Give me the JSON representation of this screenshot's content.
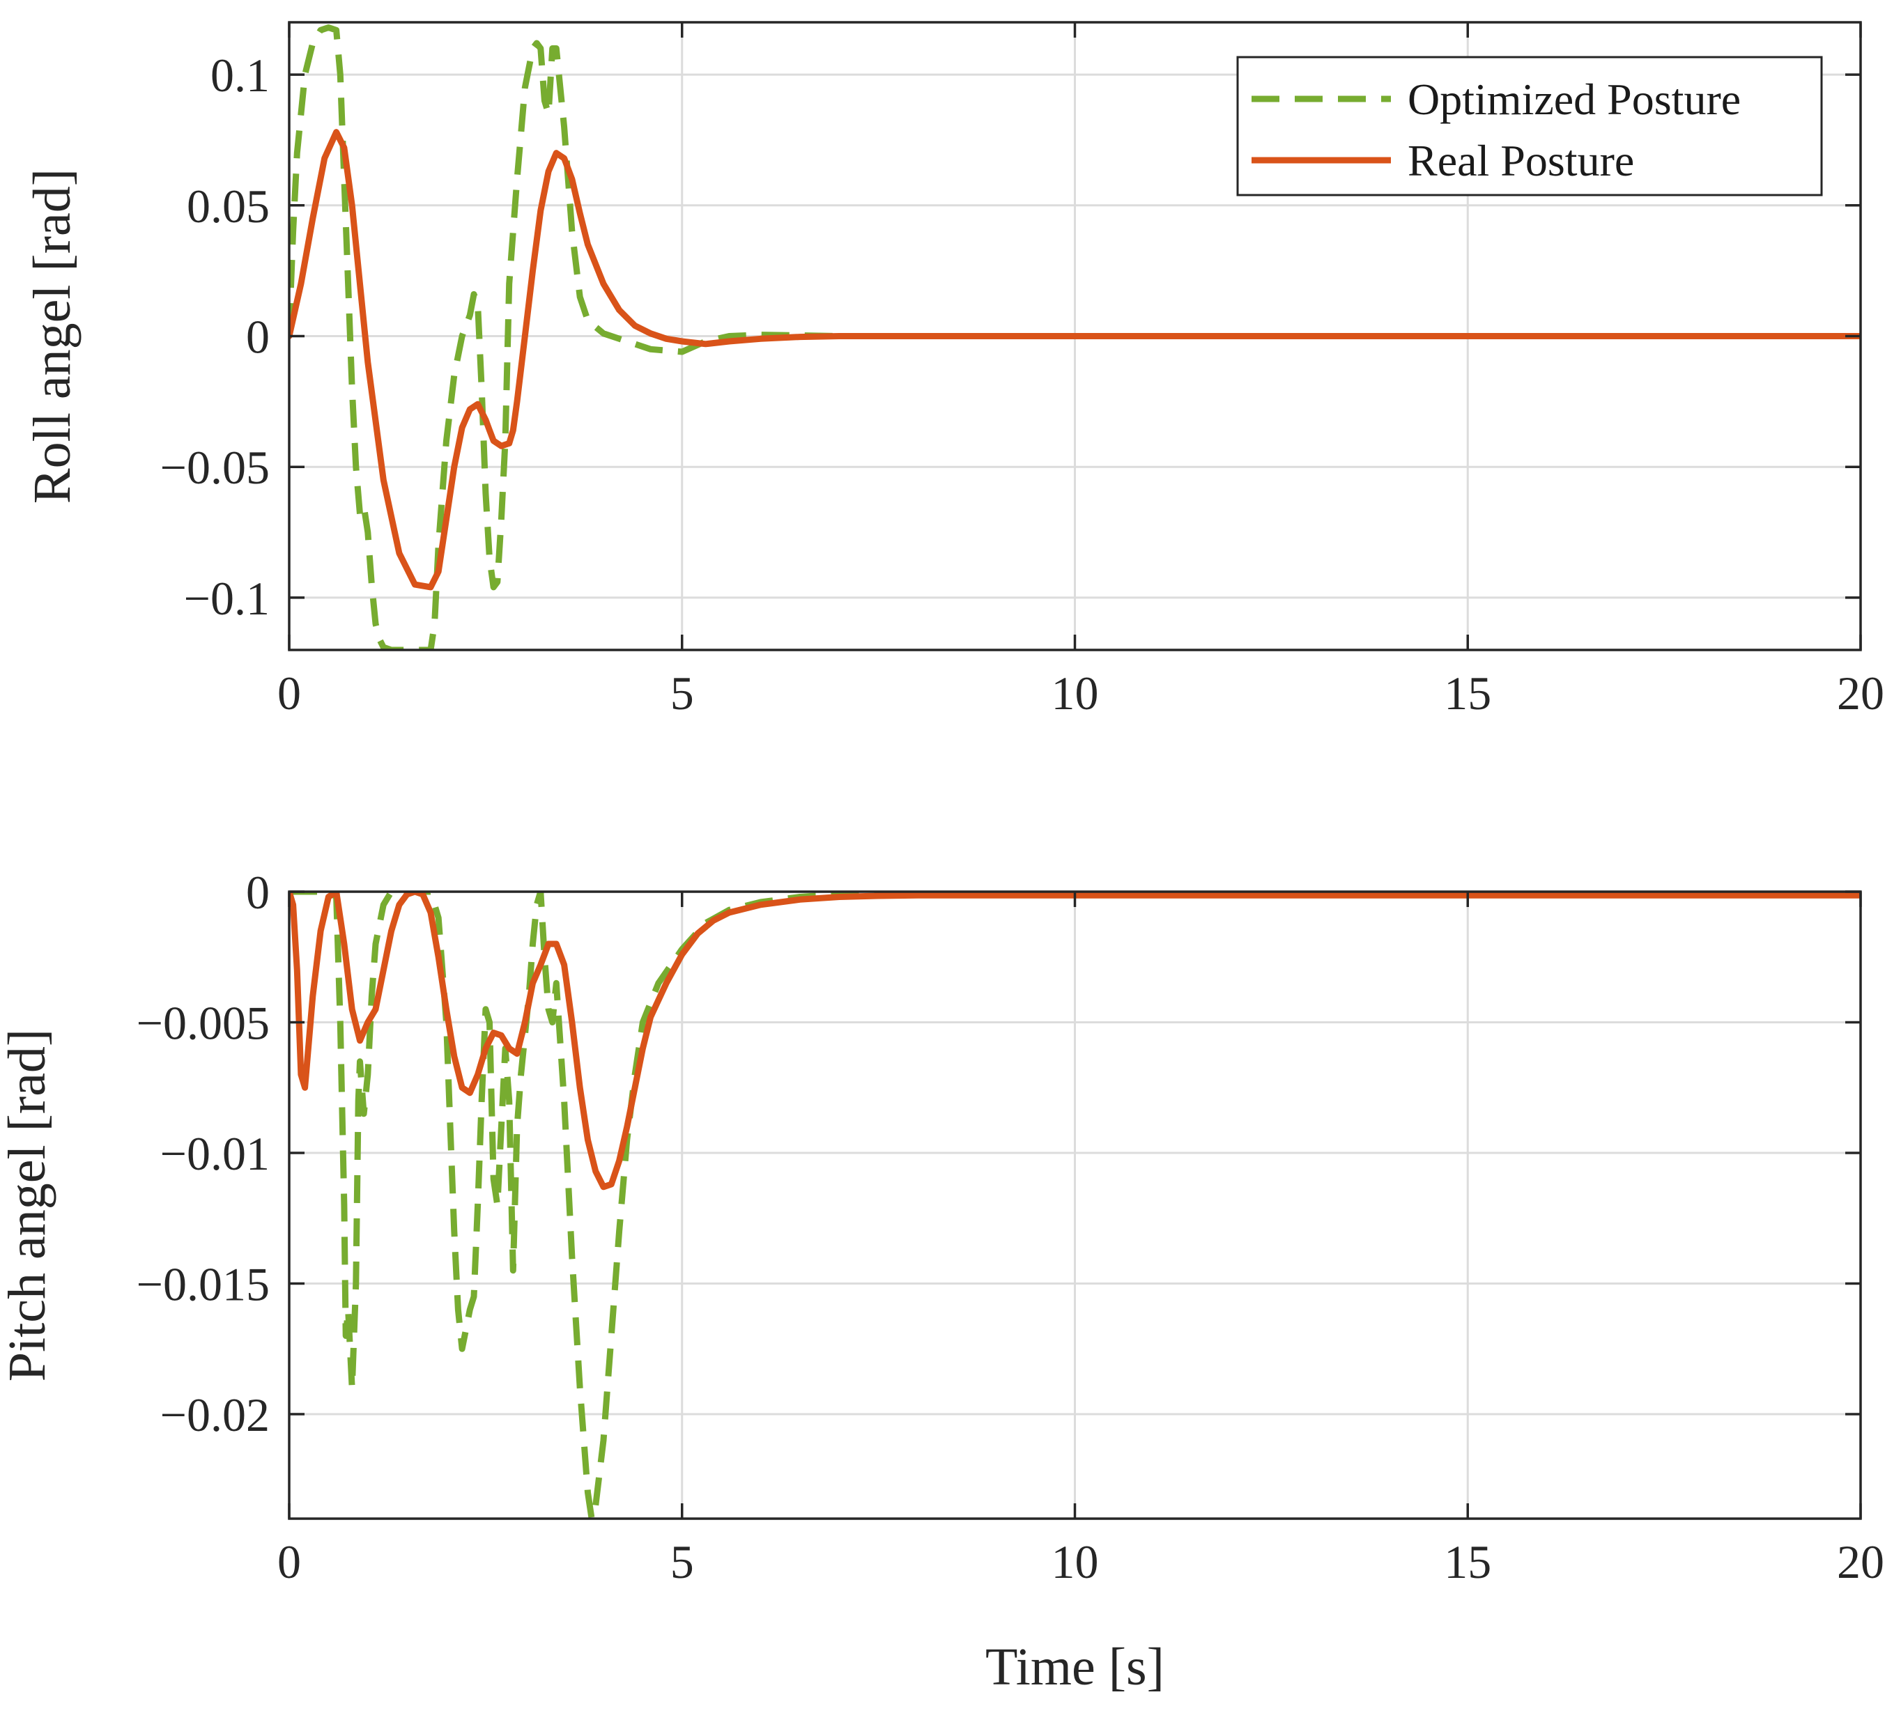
{
  "colors": {
    "optimized": "#77AC30",
    "real": "#D95319",
    "axis": "#262626",
    "grid": "#dcdcdc"
  },
  "legend": {
    "optimized_label": "Optimized Posture",
    "real_label": "Real Posture",
    "location": "top-right"
  },
  "chart_data": [
    {
      "type": "line",
      "title": "",
      "xlabel": "",
      "ylabel": "Roll angel [rad]",
      "xlim": [
        0,
        20
      ],
      "ylim": [
        -0.12,
        0.12
      ],
      "xticks": [
        0,
        5,
        10,
        15,
        20
      ],
      "xtick_labels": [
        "0",
        "5",
        "10",
        "15",
        "20"
      ],
      "yticks": [
        -0.1,
        -0.05,
        0,
        0.05,
        0.1
      ],
      "ytick_labels": [
        "−0.1",
        "−0.05",
        "0",
        "0.05",
        "0.1"
      ],
      "grid": true,
      "series": [
        {
          "name": "Optimized Posture",
          "style": "dashed",
          "x": [
            0,
            0.05,
            0.1,
            0.2,
            0.3,
            0.4,
            0.5,
            0.6,
            0.65,
            0.7,
            0.75,
            0.8,
            0.85,
            0.9,
            0.95,
            1.0,
            1.05,
            1.1,
            1.15,
            1.2,
            1.3,
            1.4,
            1.5,
            1.6,
            1.7,
            1.8,
            1.85,
            1.9,
            2.0,
            2.1,
            2.2,
            2.3,
            2.35,
            2.4,
            2.45,
            2.5,
            2.55,
            2.6,
            2.65,
            2.7,
            2.75,
            2.8,
            2.9,
            3.0,
            3.1,
            3.15,
            3.2,
            3.25,
            3.3,
            3.35,
            3.4,
            3.5,
            3.6,
            3.7,
            3.8,
            4.0,
            4.3,
            4.6,
            5.0,
            5.3,
            5.6,
            6.0,
            7.0,
            8.0,
            10.0,
            12.0,
            14.0,
            16.0,
            18.0,
            20.0
          ],
          "values": [
            0.002,
            0.04,
            0.07,
            0.1,
            0.112,
            0.117,
            0.118,
            0.117,
            0.1,
            0.06,
            0.02,
            -0.02,
            -0.05,
            -0.068,
            -0.065,
            -0.075,
            -0.095,
            -0.11,
            -0.116,
            -0.119,
            -0.12,
            -0.12,
            -0.12,
            -0.12,
            -0.12,
            -0.12,
            -0.11,
            -0.08,
            -0.04,
            -0.015,
            0.0,
            0.008,
            0.016,
            0.012,
            -0.02,
            -0.06,
            -0.085,
            -0.096,
            -0.094,
            -0.07,
            -0.04,
            0.02,
            0.06,
            0.095,
            0.11,
            0.112,
            0.11,
            0.09,
            0.085,
            0.11,
            0.11,
            0.08,
            0.04,
            0.015,
            0.006,
            0.001,
            -0.002,
            -0.005,
            -0.006,
            -0.002,
            0.0,
            0.0005,
            0.0,
            0.0,
            0.0,
            0.0,
            0.0,
            0.0,
            0.0,
            0.0
          ]
        },
        {
          "name": "Real Posture",
          "style": "solid",
          "x": [
            0,
            0.15,
            0.3,
            0.45,
            0.6,
            0.7,
            0.8,
            0.9,
            1.0,
            1.2,
            1.4,
            1.6,
            1.8,
            1.9,
            2.0,
            2.1,
            2.2,
            2.3,
            2.4,
            2.5,
            2.55,
            2.6,
            2.7,
            2.8,
            2.85,
            2.9,
            3.0,
            3.1,
            3.2,
            3.3,
            3.4,
            3.5,
            3.6,
            3.7,
            3.8,
            4.0,
            4.2,
            4.4,
            4.6,
            4.8,
            5.0,
            5.3,
            5.6,
            6.0,
            6.5,
            7.0,
            8.0,
            10.0,
            12.0,
            14.0,
            16.0,
            18.0,
            20.0
          ],
          "values": [
            0.0,
            0.02,
            0.045,
            0.068,
            0.078,
            0.072,
            0.05,
            0.02,
            -0.01,
            -0.055,
            -0.083,
            -0.095,
            -0.096,
            -0.09,
            -0.07,
            -0.05,
            -0.035,
            -0.028,
            -0.026,
            -0.032,
            -0.036,
            -0.04,
            -0.042,
            -0.041,
            -0.036,
            -0.025,
            0.0,
            0.025,
            0.048,
            0.063,
            0.07,
            0.068,
            0.06,
            0.047,
            0.035,
            0.02,
            0.01,
            0.004,
            0.001,
            -0.001,
            -0.002,
            -0.003,
            -0.002,
            -0.001,
            -0.0003,
            0.0,
            0.0,
            0.0,
            0.0,
            0.0,
            0.0,
            0.0,
            0.0
          ]
        }
      ]
    },
    {
      "type": "line",
      "title": "",
      "xlabel": "Time [s]",
      "ylabel": "Pitch angel [rad]",
      "xlim": [
        0,
        20
      ],
      "ylim": [
        -0.024,
        0.0
      ],
      "xticks": [
        0,
        5,
        10,
        15,
        20
      ],
      "xtick_labels": [
        "0",
        "5",
        "10",
        "15",
        "20"
      ],
      "yticks": [
        -0.02,
        -0.015,
        -0.01,
        -0.005,
        0
      ],
      "ytick_labels": [
        "−0.02",
        "−0.015",
        "−0.01",
        "−0.005",
        "0"
      ],
      "grid": true,
      "series": [
        {
          "name": "Optimized Posture",
          "style": "dashed",
          "x": [
            0,
            0.1,
            0.2,
            0.3,
            0.4,
            0.5,
            0.6,
            0.65,
            0.7,
            0.72,
            0.75,
            0.8,
            0.85,
            0.88,
            0.9,
            0.95,
            1.0,
            1.05,
            1.1,
            1.2,
            1.3,
            1.4,
            1.5,
            1.6,
            1.7,
            1.8,
            1.9,
            2.0,
            2.05,
            2.1,
            2.15,
            2.2,
            2.3,
            2.35,
            2.4,
            2.45,
            2.5,
            2.55,
            2.6,
            2.65,
            2.7,
            2.75,
            2.8,
            2.85,
            2.9,
            2.95,
            3.0,
            3.05,
            3.1,
            3.15,
            3.2,
            3.25,
            3.3,
            3.35,
            3.4,
            3.5,
            3.6,
            3.7,
            3.8,
            3.85,
            3.9,
            4.0,
            4.1,
            4.2,
            4.3,
            4.4,
            4.5,
            4.7,
            5.0,
            5.3,
            5.6,
            6.0,
            6.5,
            7.0,
            8.0,
            10.0,
            12.0,
            14.0,
            16.0,
            18.0,
            20.0
          ],
          "values": [
            0.0,
            0.0,
            0.0,
            0.0,
            0.0,
            0.0,
            -0.0002,
            -0.005,
            -0.012,
            -0.017,
            -0.016,
            -0.019,
            -0.015,
            -0.008,
            -0.0065,
            -0.0085,
            -0.007,
            -0.004,
            -0.002,
            -0.0005,
            0.0,
            0.0,
            0.0,
            0.0,
            0.0,
            0.0,
            -0.001,
            -0.005,
            -0.009,
            -0.013,
            -0.016,
            -0.0175,
            -0.016,
            -0.0155,
            -0.012,
            -0.008,
            -0.0045,
            -0.005,
            -0.011,
            -0.012,
            -0.009,
            -0.006,
            -0.008,
            -0.0145,
            -0.009,
            -0.007,
            -0.0055,
            -0.004,
            -0.002,
            -0.0005,
            0.0,
            -0.0025,
            -0.0045,
            -0.005,
            -0.0035,
            -0.008,
            -0.014,
            -0.019,
            -0.023,
            -0.024,
            -0.0235,
            -0.021,
            -0.017,
            -0.013,
            -0.0095,
            -0.007,
            -0.005,
            -0.0035,
            -0.0022,
            -0.0012,
            -0.0007,
            -0.0004,
            -0.0002,
            -0.0001,
            0.0,
            0.0,
            0.0,
            0.0,
            0.0,
            0.0,
            0.0
          ]
        },
        {
          "name": "Real Posture",
          "style": "solid",
          "x": [
            0,
            0.05,
            0.1,
            0.15,
            0.2,
            0.3,
            0.4,
            0.5,
            0.6,
            0.7,
            0.8,
            0.9,
            1.0,
            1.1,
            1.2,
            1.3,
            1.4,
            1.5,
            1.6,
            1.7,
            1.8,
            1.9,
            2.0,
            2.1,
            2.2,
            2.3,
            2.4,
            2.5,
            2.6,
            2.7,
            2.8,
            2.9,
            3.0,
            3.1,
            3.2,
            3.3,
            3.4,
            3.5,
            3.6,
            3.7,
            3.8,
            3.9,
            4.0,
            4.1,
            4.2,
            4.3,
            4.4,
            4.5,
            4.6,
            4.8,
            5.0,
            5.2,
            5.4,
            5.6,
            6.0,
            6.5,
            7.0,
            7.5,
            8.0,
            10.0,
            12.0,
            14.0,
            16.0,
            18.0,
            20.0
          ],
          "values": [
            0.0,
            -0.0005,
            -0.003,
            -0.007,
            -0.0075,
            -0.004,
            -0.0015,
            -0.0002,
            0.0,
            -0.002,
            -0.0045,
            -0.0057,
            -0.005,
            -0.0045,
            -0.003,
            -0.0015,
            -0.0005,
            -0.0001,
            0.0,
            -0.0001,
            -0.0008,
            -0.0025,
            -0.0045,
            -0.0063,
            -0.0075,
            -0.0077,
            -0.007,
            -0.006,
            -0.0054,
            -0.0055,
            -0.006,
            -0.0062,
            -0.005,
            -0.0035,
            -0.0028,
            -0.002,
            -0.002,
            -0.0028,
            -0.005,
            -0.0075,
            -0.0095,
            -0.0107,
            -0.0113,
            -0.0112,
            -0.0103,
            -0.009,
            -0.0075,
            -0.006,
            -0.0048,
            -0.0035,
            -0.0024,
            -0.0016,
            -0.0011,
            -0.0008,
            -0.0005,
            -0.0003,
            -0.0002,
            -0.00016,
            -0.00014,
            -0.00014,
            -0.00014,
            -0.00014,
            -0.00014,
            -0.00014,
            -0.00014
          ]
        }
      ]
    }
  ]
}
